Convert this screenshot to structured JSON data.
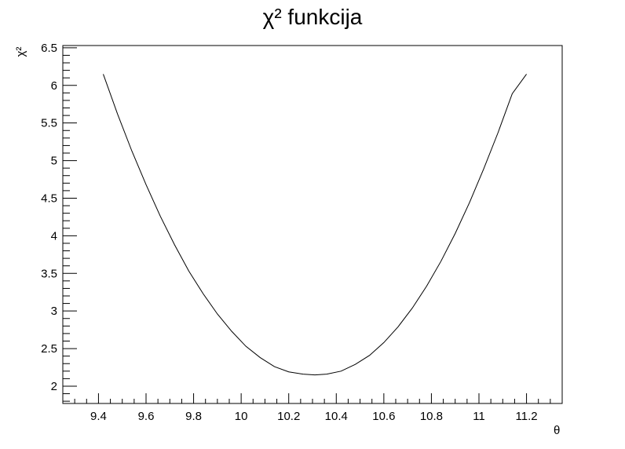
{
  "chart_data": {
    "type": "line",
    "title": "χ² funkcija",
    "xlabel": "θ",
    "ylabel": "χ²",
    "xlim": [
      9.25,
      11.35
    ],
    "ylim": [
      1.77,
      6.53
    ],
    "x_ticks": [
      9.4,
      9.6,
      9.8,
      10,
      10.2,
      10.4,
      10.6,
      10.8,
      11,
      11.2
    ],
    "x_tick_labels": [
      "9.4",
      "9.6",
      "9.8",
      "10",
      "10.2",
      "10.4",
      "10.6",
      "10.8",
      "11",
      "11.2"
    ],
    "y_ticks": [
      2,
      2.5,
      3,
      3.5,
      4,
      4.5,
      5,
      5.5,
      6,
      6.5
    ],
    "y_tick_labels": [
      "2",
      "2.5",
      "3",
      "3.5",
      "4",
      "4.5",
      "5",
      "5.5",
      "6",
      "6.5"
    ],
    "grid": false,
    "series": [
      {
        "x": [
          9.42,
          9.48,
          9.54,
          9.6,
          9.66,
          9.72,
          9.78,
          9.84,
          9.9,
          9.96,
          10.02,
          10.08,
          10.14,
          10.2,
          10.26,
          10.31,
          10.36,
          10.42,
          10.48,
          10.54,
          10.6,
          10.66,
          10.72,
          10.78,
          10.84,
          10.9,
          10.96,
          11.02,
          11.08,
          11.14,
          11.2
        ],
        "y": [
          6.15,
          5.62,
          5.13,
          4.68,
          4.26,
          3.88,
          3.53,
          3.23,
          2.96,
          2.73,
          2.53,
          2.38,
          2.26,
          2.19,
          2.16,
          2.15,
          2.16,
          2.2,
          2.29,
          2.41,
          2.58,
          2.79,
          3.04,
          3.33,
          3.66,
          4.03,
          4.44,
          4.89,
          5.37,
          5.89,
          6.15
        ],
        "color": "#000000"
      }
    ]
  }
}
